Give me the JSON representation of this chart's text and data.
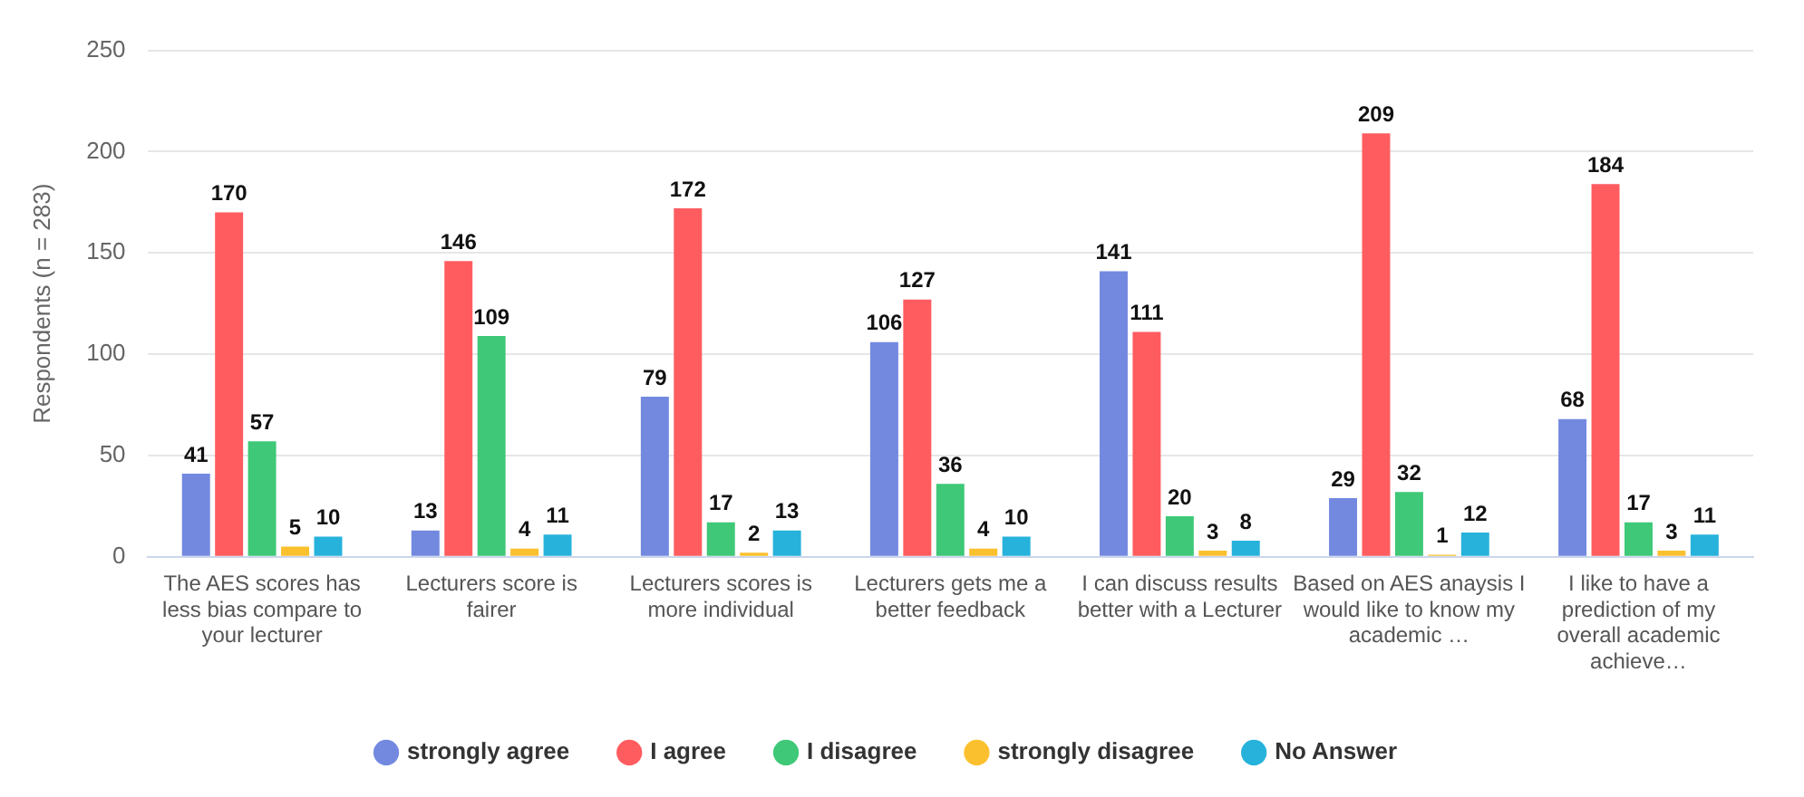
{
  "chart_data": {
    "type": "bar",
    "ylabel": "Respondents (n = 283)",
    "categories": [
      "The AES scores has less bias compare to your lecturer",
      "Lecturers score is fairer",
      "Lecturers scores is more individual",
      "Lecturers gets me a better feedback",
      "I can discuss results better with a Lecturer",
      "Based on AES anaysis I would like to know my academic …",
      "I like to have a prediction of my overall academic achieve…"
    ],
    "series": [
      {
        "name": "strongly agree",
        "color": "#7389e0",
        "values": [
          41,
          13,
          79,
          106,
          141,
          29,
          68
        ]
      },
      {
        "name": "I agree",
        "color": "#ff5c60",
        "values": [
          170,
          146,
          172,
          127,
          111,
          209,
          184
        ]
      },
      {
        "name": "I disagree",
        "color": "#3ec877",
        "values": [
          57,
          109,
          17,
          36,
          20,
          32,
          17
        ]
      },
      {
        "name": "strongly disagree",
        "color": "#fbc02d",
        "values": [
          5,
          4,
          2,
          4,
          3,
          1,
          3
        ]
      },
      {
        "name": "No Answer",
        "color": "#27b2db",
        "values": [
          10,
          11,
          13,
          10,
          8,
          12,
          11
        ]
      }
    ],
    "ylim": [
      0,
      250
    ],
    "yticks": [
      0,
      50,
      100,
      150,
      200,
      250
    ],
    "grid": "y",
    "legend": "bottom",
    "data_labels": true
  }
}
